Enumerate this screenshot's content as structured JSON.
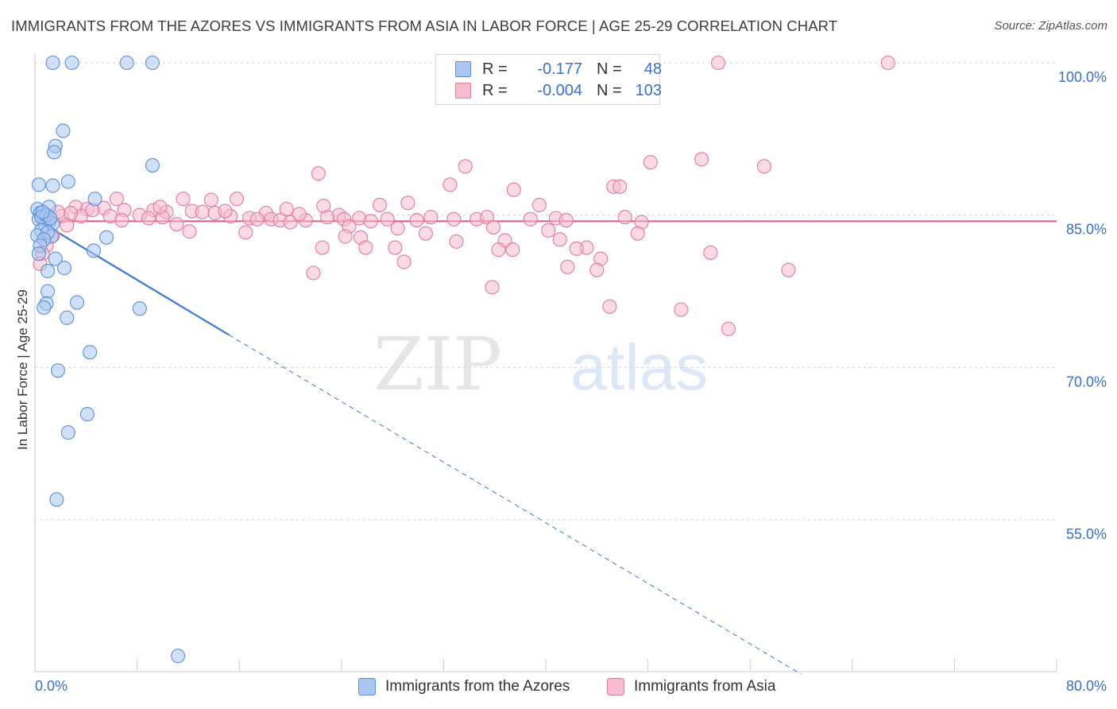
{
  "title": "IMMIGRANTS FROM THE AZORES VS IMMIGRANTS FROM ASIA IN LABOR FORCE | AGE 25-29 CORRELATION CHART",
  "source": "Source: ZipAtlas.com",
  "watermark": {
    "zip": "ZIP",
    "atlas": "atlas"
  },
  "legend_top": {
    "rows": [
      {
        "r_label": "R =",
        "r_value": "-0.177",
        "n_label": "N =",
        "n_value": "48",
        "color": "#a9c7f0"
      },
      {
        "r_label": "R =",
        "r_value": "-0.004",
        "n_label": "N =",
        "n_value": "103",
        "color": "#f6bccd"
      }
    ]
  },
  "chart_data": {
    "type": "scatter",
    "title": "IMMIGRANTS FROM THE AZORES VS IMMIGRANTS FROM ASIA IN LABOR FORCE | AGE 25-29 CORRELATION CHART",
    "xlabel": "",
    "ylabel": "In Labor Force | Age 25-29",
    "xlim": [
      0,
      80
    ],
    "ylim": [
      40,
      102
    ],
    "x_tick_labels": [
      "0.0%",
      "80.0%"
    ],
    "y_ticks": [
      55,
      70,
      85,
      100
    ],
    "y_tick_labels": [
      "55.0%",
      "70.0%",
      "85.0%",
      "100.0%"
    ],
    "grid": true,
    "legend_position": "bottom",
    "series": [
      {
        "name": "Immigrants from the Azores",
        "color": "#a9c7f0",
        "stroke": "#5b8fd6",
        "trend": {
          "x": [
            0.2,
            15.2
          ],
          "y": [
            84.5,
            73.2
          ],
          "dashed_to": [
            60,
            39.8
          ],
          "color": "#3a78d4"
        },
        "points": [
          [
            1.4,
            100
          ],
          [
            2.9,
            100
          ],
          [
            7.2,
            100
          ],
          [
            9.2,
            100
          ],
          [
            2.2,
            93.3
          ],
          [
            1.6,
            91.8
          ],
          [
            1.5,
            91.2
          ],
          [
            9.2,
            89.9
          ],
          [
            0.3,
            88
          ],
          [
            1.4,
            87.9
          ],
          [
            2.6,
            88.3
          ],
          [
            4.7,
            86.6
          ],
          [
            0.2,
            85.6
          ],
          [
            1.1,
            85.8
          ],
          [
            0.4,
            85.2
          ],
          [
            0.6,
            84.9
          ],
          [
            0.3,
            84.6
          ],
          [
            1.1,
            84.3
          ],
          [
            0.8,
            84.0
          ],
          [
            1.4,
            84.2
          ],
          [
            0.5,
            83.5
          ],
          [
            0.2,
            83.0
          ],
          [
            1.3,
            82.9
          ],
          [
            5.6,
            82.8
          ],
          [
            1.0,
            83.3
          ],
          [
            0.7,
            82.6
          ],
          [
            0.4,
            82.0
          ],
          [
            0.3,
            81.2
          ],
          [
            4.6,
            81.5
          ],
          [
            1.6,
            80.7
          ],
          [
            2.3,
            79.8
          ],
          [
            1.0,
            79.5
          ],
          [
            1.0,
            77.5
          ],
          [
            0.9,
            76.3
          ],
          [
            3.3,
            76.4
          ],
          [
            0.7,
            75.9
          ],
          [
            8.2,
            75.8
          ],
          [
            2.5,
            74.9
          ],
          [
            4.3,
            71.5
          ],
          [
            1.8,
            69.7
          ],
          [
            4.1,
            65.4
          ],
          [
            2.6,
            63.6
          ],
          [
            1.7,
            57.0
          ],
          [
            11.2,
            41.6
          ],
          [
            0.5,
            84.8
          ],
          [
            0.9,
            85.0
          ],
          [
            1.2,
            84.7
          ],
          [
            0.6,
            85.3
          ]
        ]
      },
      {
        "name": "Immigrants from Asia",
        "color": "#f6bccd",
        "stroke": "#e07a9e",
        "trend": {
          "x": [
            0.2,
            80
          ],
          "y": [
            84.4,
            84.4
          ],
          "color": "#e0608c"
        },
        "points": [
          [
            53.5,
            100
          ],
          [
            66.8,
            100
          ],
          [
            33.7,
            89.8
          ],
          [
            48.2,
            90.2
          ],
          [
            52.2,
            90.5
          ],
          [
            57.1,
            89.8
          ],
          [
            22.2,
            89.1
          ],
          [
            32.5,
            88.0
          ],
          [
            37.5,
            87.5
          ],
          [
            45.3,
            87.8
          ],
          [
            45.8,
            87.8
          ],
          [
            6.4,
            86.6
          ],
          [
            11.6,
            86.6
          ],
          [
            13.8,
            86.5
          ],
          [
            15.8,
            86.6
          ],
          [
            22.6,
            85.9
          ],
          [
            27.0,
            86.0
          ],
          [
            29.2,
            86.2
          ],
          [
            39.5,
            86.0
          ],
          [
            3.2,
            85.8
          ],
          [
            4.1,
            85.6
          ],
          [
            5.4,
            85.7
          ],
          [
            7.0,
            85.5
          ],
          [
            9.3,
            85.5
          ],
          [
            10.3,
            85.3
          ],
          [
            12.3,
            85.4
          ],
          [
            13.1,
            85.3
          ],
          [
            14.1,
            85.2
          ],
          [
            18.1,
            85.2
          ],
          [
            19.7,
            85.6
          ],
          [
            23.8,
            85.0
          ],
          [
            2.1,
            84.9
          ],
          [
            3.6,
            84.9
          ],
          [
            5.9,
            84.9
          ],
          [
            8.2,
            85.0
          ],
          [
            8.9,
            84.7
          ],
          [
            10.0,
            84.8
          ],
          [
            15.3,
            84.9
          ],
          [
            16.8,
            84.7
          ],
          [
            17.4,
            84.6
          ],
          [
            18.5,
            84.6
          ],
          [
            19.2,
            84.5
          ],
          [
            20.0,
            84.3
          ],
          [
            21.2,
            84.5
          ],
          [
            22.9,
            84.8
          ],
          [
            24.2,
            84.6
          ],
          [
            25.4,
            84.7
          ],
          [
            26.3,
            84.4
          ],
          [
            27.6,
            84.6
          ],
          [
            29.9,
            84.5
          ],
          [
            31.0,
            84.8
          ],
          [
            32.8,
            84.6
          ],
          [
            34.6,
            84.6
          ],
          [
            35.4,
            84.8
          ],
          [
            38.8,
            84.6
          ],
          [
            40.8,
            84.7
          ],
          [
            41.6,
            84.5
          ],
          [
            46.2,
            84.8
          ],
          [
            47.5,
            84.3
          ],
          [
            2.5,
            84.0
          ],
          [
            11.1,
            84.1
          ],
          [
            16.5,
            83.3
          ],
          [
            24.6,
            83.9
          ],
          [
            28.4,
            83.7
          ],
          [
            30.6,
            83.2
          ],
          [
            35.9,
            83.8
          ],
          [
            40.2,
            83.5
          ],
          [
            47.2,
            83.2
          ],
          [
            12.1,
            83.4
          ],
          [
            24.3,
            82.9
          ],
          [
            25.5,
            82.8
          ],
          [
            33.0,
            82.4
          ],
          [
            36.8,
            82.5
          ],
          [
            41.1,
            82.6
          ],
          [
            22.5,
            81.8
          ],
          [
            25.9,
            81.8
          ],
          [
            28.2,
            81.8
          ],
          [
            43.2,
            81.8
          ],
          [
            36.3,
            81.6
          ],
          [
            37.4,
            81.6
          ],
          [
            42.4,
            81.7
          ],
          [
            52.9,
            81.3
          ],
          [
            44.3,
            80.7
          ],
          [
            28.9,
            80.4
          ],
          [
            41.7,
            79.9
          ],
          [
            44.0,
            79.6
          ],
          [
            59.0,
            79.6
          ],
          [
            21.8,
            79.3
          ],
          [
            35.8,
            77.9
          ],
          [
            45.0,
            76.0
          ],
          [
            50.6,
            75.7
          ],
          [
            54.3,
            73.8
          ],
          [
            1.4,
            83.0
          ],
          [
            0.9,
            82.0
          ],
          [
            0.6,
            81.2
          ],
          [
            0.4,
            80.2
          ],
          [
            2.8,
            85.2
          ],
          [
            4.5,
            85.5
          ],
          [
            6.8,
            84.5
          ],
          [
            9.8,
            85.8
          ],
          [
            14.9,
            85.4
          ],
          [
            20.7,
            85.1
          ],
          [
            1.8,
            85.3
          ]
        ]
      }
    ]
  }
}
